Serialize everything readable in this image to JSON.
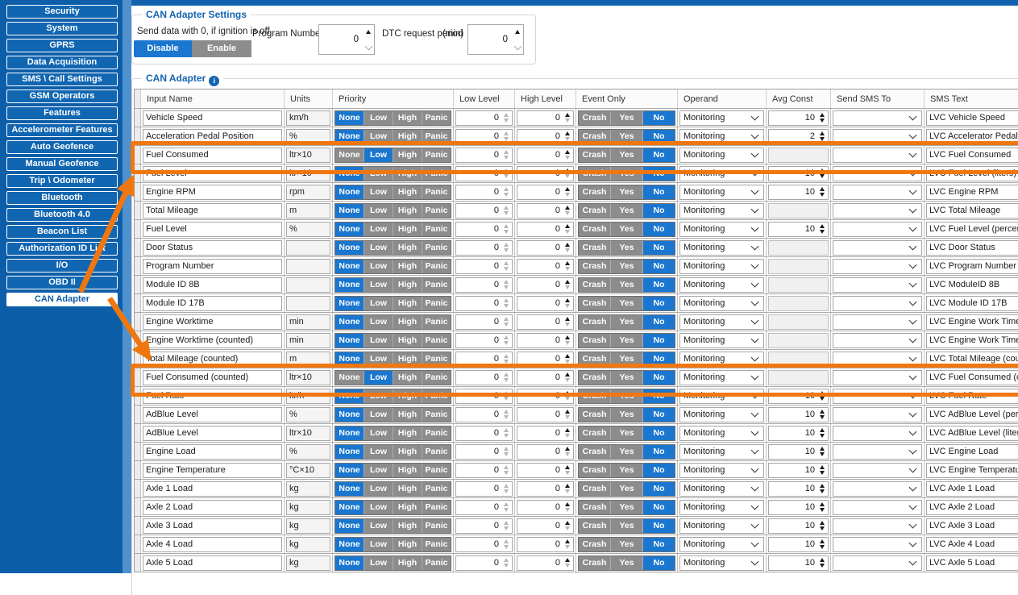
{
  "colors": {
    "accent_blue": "#1A76CE",
    "inactive_gray": "#8C8C8C",
    "highlight_orange": "#F0770F",
    "sidebar_blue": "#0D5EA8"
  },
  "sidebar": {
    "items": [
      {
        "label": "Security",
        "active": false
      },
      {
        "label": "System",
        "active": false
      },
      {
        "label": "GPRS",
        "active": false
      },
      {
        "label": "Data Acquisition",
        "active": false
      },
      {
        "label": "SMS \\ Call Settings",
        "active": false
      },
      {
        "label": "GSM Operators",
        "active": false
      },
      {
        "label": "Features",
        "active": false
      },
      {
        "label": "Accelerometer Features",
        "active": false
      },
      {
        "label": "Auto Geofence",
        "active": false
      },
      {
        "label": "Manual Geofence",
        "active": false
      },
      {
        "label": "Trip \\ Odometer",
        "active": false
      },
      {
        "label": "Bluetooth",
        "active": false
      },
      {
        "label": "Bluetooth 4.0",
        "active": false
      },
      {
        "label": "Beacon List",
        "active": false
      },
      {
        "label": "Authorization ID List",
        "active": false
      },
      {
        "label": "I/O",
        "active": false
      },
      {
        "label": "OBD II",
        "active": false
      },
      {
        "label": "CAN Adapter",
        "active": true
      }
    ]
  },
  "settings_panel": {
    "title": "CAN Adapter Settings",
    "ignition_label": "Send data with 0, if ignition is off",
    "disable_label": "Disable",
    "enable_label": "Enable",
    "ignition_selected": "Disable",
    "program_number_label": "Program Number",
    "program_number_value": "0",
    "dtc_label": "DTC request period",
    "dtc_unit": "(min)",
    "dtc_value": "0"
  },
  "can_table": {
    "title": "CAN Adapter",
    "info_icon_glyph": "i",
    "columns": [
      "Input Name",
      "Units",
      "Priority",
      "Low Level",
      "High Level",
      "Event Only",
      "Operand",
      "Avg Const",
      "Send SMS To",
      "SMS Text"
    ],
    "priority_options": [
      "None",
      "Low",
      "High",
      "Panic"
    ],
    "event_options": [
      "Crash",
      "Yes",
      "No"
    ],
    "rows": [
      {
        "name": "Vehicle Speed",
        "units": "km/h",
        "priority": "None",
        "low_level": "0",
        "high_level": "0",
        "event_only": "No",
        "operand": "Monitoring",
        "avg_const": "10",
        "send_sms_to": "",
        "sms_text": "LVC Vehicle Speed",
        "highlighted": false
      },
      {
        "name": "Acceleration Pedal Position",
        "units": "%",
        "priority": "None",
        "low_level": "0",
        "high_level": "0",
        "event_only": "No",
        "operand": "Monitoring",
        "avg_const": "2",
        "send_sms_to": "",
        "sms_text": "LVC Accelerator Pedal Position",
        "highlighted": false
      },
      {
        "name": "Fuel Consumed",
        "units": "ltr×10",
        "priority": "Low",
        "low_level": "0",
        "high_level": "0",
        "event_only": "No",
        "operand": "Monitoring",
        "avg_const": null,
        "send_sms_to": "",
        "sms_text": "LVC Fuel Consumed",
        "highlighted": true
      },
      {
        "name": "Fuel Level",
        "units": "ltr×10",
        "priority": "None",
        "low_level": "0",
        "high_level": "0",
        "event_only": "No",
        "operand": "Monitoring",
        "avg_const": "10",
        "send_sms_to": "",
        "sms_text": "LVC Fuel Level (liters)",
        "highlighted": false
      },
      {
        "name": "Engine RPM",
        "units": "rpm",
        "priority": "None",
        "low_level": "0",
        "high_level": "0",
        "event_only": "No",
        "operand": "Monitoring",
        "avg_const": "10",
        "send_sms_to": "",
        "sms_text": "LVC Engine RPM",
        "highlighted": false
      },
      {
        "name": "Total Mileage",
        "units": "m",
        "priority": "None",
        "low_level": "0",
        "high_level": "0",
        "event_only": "No",
        "operand": "Monitoring",
        "avg_const": null,
        "send_sms_to": "",
        "sms_text": "LVC Total Mileage",
        "highlighted": false
      },
      {
        "name": "Fuel Level",
        "units": "%",
        "priority": "None",
        "low_level": "0",
        "high_level": "0",
        "event_only": "No",
        "operand": "Monitoring",
        "avg_const": "10",
        "send_sms_to": "",
        "sms_text": "LVC Fuel Level (percent)",
        "highlighted": false
      },
      {
        "name": "Door Status",
        "units": "",
        "priority": "None",
        "low_level": "0",
        "high_level": "0",
        "event_only": "No",
        "operand": "Monitoring",
        "avg_const": null,
        "send_sms_to": "",
        "sms_text": "LVC Door Status",
        "highlighted": false
      },
      {
        "name": "Program Number",
        "units": "",
        "priority": "None",
        "low_level": "0",
        "high_level": "0",
        "event_only": "No",
        "operand": "Monitoring",
        "avg_const": null,
        "send_sms_to": "",
        "sms_text": "LVC Program Number",
        "highlighted": false
      },
      {
        "name": "Module ID 8B",
        "units": "",
        "priority": "None",
        "low_level": "0",
        "high_level": "0",
        "event_only": "No",
        "operand": "Monitoring",
        "avg_const": null,
        "send_sms_to": "",
        "sms_text": "LVC ModuleID 8B",
        "highlighted": false
      },
      {
        "name": "Module ID 17B",
        "units": "",
        "priority": "None",
        "low_level": "0",
        "high_level": "0",
        "event_only": "No",
        "operand": "Monitoring",
        "avg_const": null,
        "send_sms_to": "",
        "sms_text": "LVC Module ID 17B",
        "highlighted": false
      },
      {
        "name": "Engine Worktime",
        "units": "min",
        "priority": "None",
        "low_level": "0",
        "high_level": "0",
        "event_only": "No",
        "operand": "Monitoring",
        "avg_const": null,
        "send_sms_to": "",
        "sms_text": "LVC Engine Work Time",
        "highlighted": false
      },
      {
        "name": "Engine Worktime (counted)",
        "units": "min",
        "priority": "None",
        "low_level": "0",
        "high_level": "0",
        "event_only": "No",
        "operand": "Monitoring",
        "avg_const": null,
        "send_sms_to": "",
        "sms_text": "LVC Engine Work Time (counted)",
        "highlighted": false
      },
      {
        "name": "Total Mileage (counted)",
        "units": "m",
        "priority": "None",
        "low_level": "0",
        "high_level": "0",
        "event_only": "No",
        "operand": "Monitoring",
        "avg_const": null,
        "send_sms_to": "",
        "sms_text": "LVC Total Mileage (counted)",
        "highlighted": false
      },
      {
        "name": "Fuel Consumed (counted)",
        "units": "ltr×10",
        "priority": "Low",
        "low_level": "0",
        "high_level": "0",
        "event_only": "No",
        "operand": "Monitoring",
        "avg_const": null,
        "send_sms_to": "",
        "sms_text": "LVC Fuel Consumed (counted)",
        "highlighted": true
      },
      {
        "name": "Fuel Rate",
        "units": "ltr/h",
        "priority": "None",
        "low_level": "0",
        "high_level": "0",
        "event_only": "No",
        "operand": "Monitoring",
        "avg_const": "10",
        "send_sms_to": "",
        "sms_text": "LVC Fuel Rate",
        "highlighted": false
      },
      {
        "name": "AdBlue Level",
        "units": "%",
        "priority": "None",
        "low_level": "0",
        "high_level": "0",
        "event_only": "No",
        "operand": "Monitoring",
        "avg_const": "10",
        "send_sms_to": "",
        "sms_text": "LVC AdBlue Level (percent)",
        "highlighted": false
      },
      {
        "name": "AdBlue Level",
        "units": "ltr×10",
        "priority": "None",
        "low_level": "0",
        "high_level": "0",
        "event_only": "No",
        "operand": "Monitoring",
        "avg_const": "10",
        "send_sms_to": "",
        "sms_text": "LVC AdBlue Level (liters)",
        "highlighted": false
      },
      {
        "name": "Engine Load",
        "units": "%",
        "priority": "None",
        "low_level": "0",
        "high_level": "0",
        "event_only": "No",
        "operand": "Monitoring",
        "avg_const": "10",
        "send_sms_to": "",
        "sms_text": "LVC Engine Load",
        "highlighted": false
      },
      {
        "name": "Engine Temperature",
        "units": "°C×10",
        "priority": "None",
        "low_level": "0",
        "high_level": "0",
        "event_only": "No",
        "operand": "Monitoring",
        "avg_const": "10",
        "send_sms_to": "",
        "sms_text": "LVC Engine Temperature",
        "highlighted": false
      },
      {
        "name": "Axle 1 Load",
        "units": "kg",
        "priority": "None",
        "low_level": "0",
        "high_level": "0",
        "event_only": "No",
        "operand": "Monitoring",
        "avg_const": "10",
        "send_sms_to": "",
        "sms_text": "LVC Axle 1 Load",
        "highlighted": false
      },
      {
        "name": "Axle 2 Load",
        "units": "kg",
        "priority": "None",
        "low_level": "0",
        "high_level": "0",
        "event_only": "No",
        "operand": "Monitoring",
        "avg_const": "10",
        "send_sms_to": "",
        "sms_text": "LVC Axle 2 Load",
        "highlighted": false
      },
      {
        "name": "Axle 3 Load",
        "units": "kg",
        "priority": "None",
        "low_level": "0",
        "high_level": "0",
        "event_only": "No",
        "operand": "Monitoring",
        "avg_const": "10",
        "send_sms_to": "",
        "sms_text": "LVC Axle 3 Load",
        "highlighted": false
      },
      {
        "name": "Axle 4 Load",
        "units": "kg",
        "priority": "None",
        "low_level": "0",
        "high_level": "0",
        "event_only": "No",
        "operand": "Monitoring",
        "avg_const": "10",
        "send_sms_to": "",
        "sms_text": "LVC Axle 4 Load",
        "highlighted": false
      },
      {
        "name": "Axle 5 Load",
        "units": "kg",
        "priority": "None",
        "low_level": "0",
        "high_level": "0",
        "event_only": "No",
        "operand": "Monitoring",
        "avg_const": "10",
        "send_sms_to": "",
        "sms_text": "LVC Axle 5 Load",
        "highlighted": false
      }
    ]
  },
  "annotations": {
    "highlighted_rows": [
      "Fuel Consumed",
      "Fuel Consumed (counted)"
    ]
  }
}
